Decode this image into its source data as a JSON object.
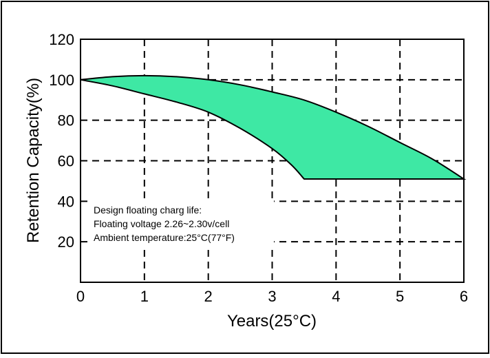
{
  "chart_data": {
    "type": "area",
    "title": "",
    "xlabel": "Years(25°C)",
    "ylabel": "Retention Capacity(%)",
    "xlim": [
      0,
      6
    ],
    "ylim": [
      0,
      120
    ],
    "x_ticks": [
      0,
      1,
      2,
      3,
      4,
      5,
      6
    ],
    "y_ticks": [
      20,
      40,
      60,
      80,
      100,
      120
    ],
    "grid": "dashed",
    "fill_color": "#3ee8a4",
    "series": [
      {
        "x": [
          0,
          0.5,
          1.0,
          1.5,
          2.0,
          2.5,
          3.0,
          3.5,
          4.0,
          4.5,
          5.0,
          5.5,
          6.0
        ],
        "values": [
          100,
          101.5,
          102,
          101.5,
          100,
          97.5,
          94,
          90,
          84,
          77,
          69,
          61,
          51
        ]
      },
      {
        "x": [
          0,
          0.5,
          1.0,
          1.5,
          2.0,
          2.5,
          3.0,
          3.3,
          3.5
        ],
        "values": [
          100,
          97,
          93,
          89,
          84,
          76,
          66,
          58,
          51
        ]
      },
      {
        "x": [
          3.5,
          6.0
        ],
        "values": [
          51,
          51
        ]
      }
    ],
    "annotation": [
      "Design floating charg life:",
      "Floating voltage 2.26~2.30v/cell",
      "Ambient temperature:25°C(77°F)"
    ]
  }
}
